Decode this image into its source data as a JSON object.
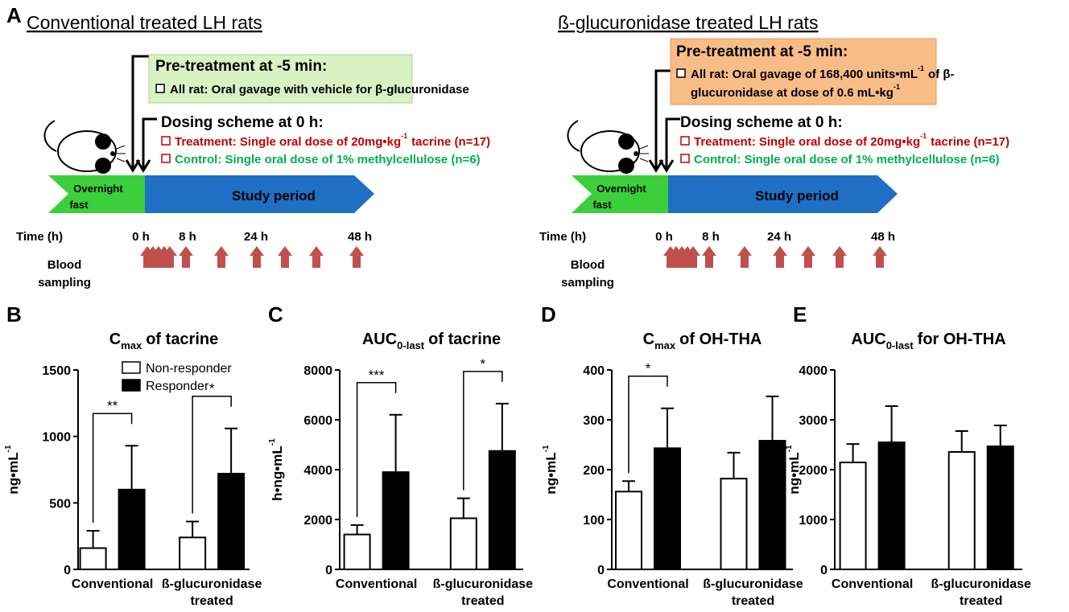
{
  "panel_labels": [
    "A",
    "B",
    "C",
    "D",
    "E"
  ],
  "panel_a": {
    "groups": [
      {
        "heading": "Conventional treated LH rats",
        "pretreatment": {
          "title": "Pre-treatment at -5 min:",
          "lines": [
            {
              "text": "All rat: Oral gavage with vehicle for β-glucuronidase"
            }
          ]
        },
        "dosing": {
          "title": "Dosing scheme at 0 h:",
          "treatment": {
            "text": "Treatment: Single oral dose of 20mg•kg",
            "sup": "-1",
            "rest": "tacrine (n=17)"
          },
          "control": {
            "text": "Control: Single oral dose of 1% methylcellulose (n=6)"
          }
        },
        "phases": {
          "fast": [
            "Overnight",
            "fast"
          ],
          "study": "Study period"
        },
        "time_label": "Time (h)",
        "times": [
          "0 h",
          "8 h",
          "24 h",
          "48 h"
        ],
        "sampling_label": [
          "Blood",
          "sampling"
        ]
      },
      {
        "heading": "ß-glucuronidase treated LH rats",
        "pretreatment": {
          "title": "Pre-treatment at -5 min:",
          "lines": [
            {
              "text": "All rat: Oral gavage of 168,400 units•mL",
              "sup": "-1",
              "rest": "of β-"
            },
            {
              "text": "glucuronidase at dose of 0.6 mL•kg",
              "sup": "-1"
            }
          ]
        },
        "dosing": {
          "title": "Dosing scheme at 0 h:",
          "treatment": {
            "text": "Treatment: Single oral dose of 20mg•kg",
            "sup": "-1",
            "rest": "tacrine (n=17)"
          },
          "control": {
            "text": "Control: Single oral dose of 1% methylcellulose (n=6)"
          }
        },
        "phases": {
          "fast": [
            "Overnight",
            "fast"
          ],
          "study": "Study period"
        },
        "time_label": "Time (h)",
        "times": [
          "0 h",
          "8 h",
          "24 h",
          "48 h"
        ],
        "sampling_label": [
          "Blood",
          "sampling"
        ]
      }
    ]
  },
  "chart_data": [
    {
      "type": "bar",
      "title": {
        "base": "C",
        "sub": "max",
        "text": "of tacrine"
      },
      "ylabel": {
        "text": "ng•mL",
        "sup": "-1"
      },
      "categories": [
        "Conventional",
        "ß-glucuronidase treated"
      ],
      "series": [
        {
          "name": "Non-responder",
          "color": "#ffffff",
          "values": [
            160,
            240
          ],
          "errors": [
            130,
            120
          ]
        },
        {
          "name": "Responder",
          "color": "#000000",
          "values": [
            600,
            720
          ],
          "errors": [
            330,
            340
          ]
        }
      ],
      "significance": [
        "**",
        "*"
      ],
      "ylim": [
        0,
        1500
      ],
      "yticks": [
        0,
        500,
        1000,
        1500
      ],
      "legend": "top-left"
    },
    {
      "type": "bar",
      "title": {
        "base": "AUC",
        "sub": "0-last",
        "text": "of tacrine"
      },
      "ylabel": {
        "text": "h•ng•mL",
        "sup": "-1"
      },
      "categories": [
        "Conventional",
        "ß-glucuronidase treated"
      ],
      "series": [
        {
          "color": "#ffffff",
          "values": [
            1400,
            2050
          ],
          "errors": [
            380,
            800
          ]
        },
        {
          "color": "#000000",
          "values": [
            3900,
            4750
          ],
          "errors": [
            2300,
            1900
          ]
        }
      ],
      "significance": [
        "***",
        "*"
      ],
      "ylim": [
        0,
        8000
      ],
      "yticks": [
        0,
        2000,
        4000,
        6000,
        8000
      ]
    },
    {
      "type": "bar",
      "title": {
        "base": "C",
        "sub": "max",
        "text": "of OH-THA"
      },
      "ylabel": {
        "text": "ng•mL",
        "sup": "-1"
      },
      "categories": [
        "Conventional",
        "ß-glucuronidase treated"
      ],
      "series": [
        {
          "color": "#ffffff",
          "values": [
            156,
            182
          ],
          "errors": [
            21,
            52
          ]
        },
        {
          "color": "#000000",
          "values": [
            243,
            258
          ],
          "errors": [
            80,
            89
          ]
        }
      ],
      "significance": [
        "*",
        null
      ],
      "ylim": [
        0,
        400
      ],
      "yticks": [
        0,
        100,
        200,
        300,
        400
      ]
    },
    {
      "type": "bar",
      "title": {
        "base": "AUC",
        "sub": "0-last",
        "text": "for OH-THA"
      },
      "ylabel": {
        "text": "ng•mL",
        "sup": "-1"
      },
      "categories": [
        "Conventional",
        "ß-glucuronidase treated"
      ],
      "series": [
        {
          "color": "#ffffff",
          "values": [
            2145,
            2355
          ],
          "errors": [
            370,
            420
          ]
        },
        {
          "color": "#000000",
          "values": [
            2548,
            2468
          ],
          "errors": [
            726,
            420
          ]
        }
      ],
      "ylim": [
        0,
        4000
      ],
      "yticks": [
        0,
        1000,
        2000,
        3000,
        4000
      ]
    }
  ]
}
